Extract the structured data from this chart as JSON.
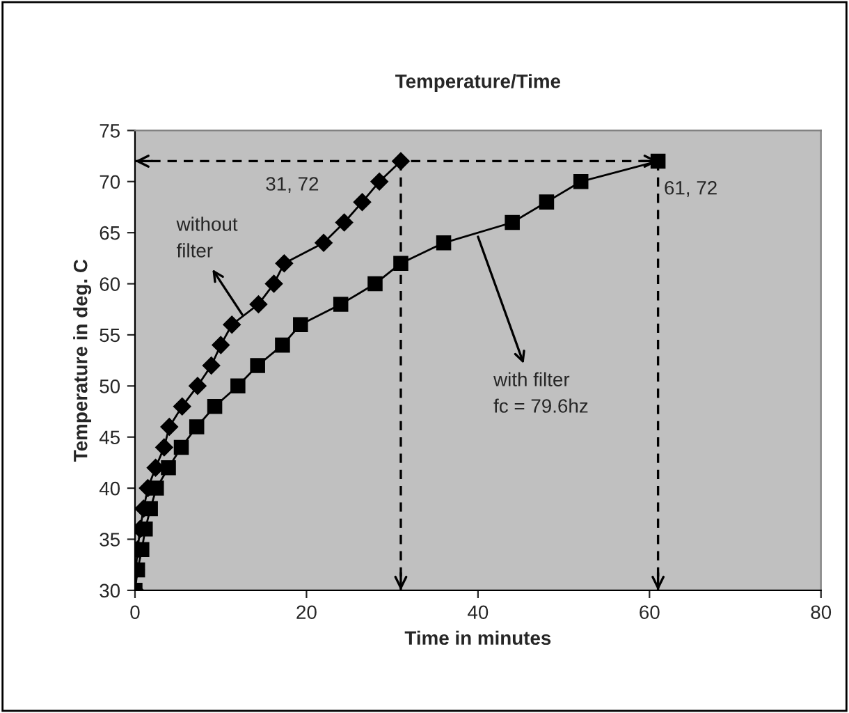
{
  "chart_data": {
    "type": "line",
    "title": "Temperature/Time",
    "xlabel": "Time in minutes",
    "ylabel": "Temperature in deg. C",
    "xlim": [
      0,
      80
    ],
    "xticks": [
      0,
      20,
      40,
      60,
      80
    ],
    "ylim": [
      30,
      75
    ],
    "yticks": [
      30,
      35,
      40,
      45,
      50,
      55,
      60,
      65,
      70,
      75
    ],
    "grid": false,
    "legend": false,
    "series": [
      {
        "color": "#000000",
        "marker": "diamond",
        "x": [
          0,
          0.1,
          0.3,
          0.6,
          1,
          1.5,
          2.4,
          3.4,
          4,
          5.5,
          7.3,
          8.9,
          10,
          11.3,
          14.4,
          16.2,
          17.4,
          22,
          24.4,
          26.5,
          28.5,
          31
        ],
        "values": [
          30,
          32,
          34,
          36,
          38,
          40,
          42,
          44,
          46,
          48,
          50,
          52,
          54,
          56,
          58,
          60,
          62,
          64,
          66,
          68,
          70,
          72
        ]
      },
      {
        "color": "#000000",
        "marker": "square",
        "x": [
          0,
          0.3,
          0.8,
          1.2,
          1.8,
          2.5,
          3.9,
          5.4,
          7.2,
          9.3,
          12,
          14.3,
          17.2,
          19.3,
          24,
          28,
          31,
          36,
          44,
          48,
          52,
          61
        ],
        "values": [
          30,
          32,
          34,
          36,
          38,
          40,
          42,
          44,
          46,
          48,
          50,
          52,
          54,
          56,
          58,
          60,
          62,
          64,
          66,
          68,
          70,
          72
        ]
      }
    ],
    "ref_lines": [
      {
        "axis": "y",
        "value": 72,
        "color": "#000000",
        "line_style": "dashed"
      },
      {
        "axis": "x",
        "value": 31,
        "color": "#000000",
        "line_style": "dashed"
      },
      {
        "axis": "x",
        "value": 61,
        "color": "#000000",
        "line_style": "dashed"
      }
    ],
    "annotations": [
      "31, 72",
      {
        "text": "61, 72",
        "x": 61,
        "y": 72
      },
      {
        "text": "without\nfilter",
        "x": 12.5,
        "y": 57
      },
      {
        "text": "with filter\nfc = 79.6hz",
        "x": 40,
        "y": 64.6
      }
    ]
  }
}
